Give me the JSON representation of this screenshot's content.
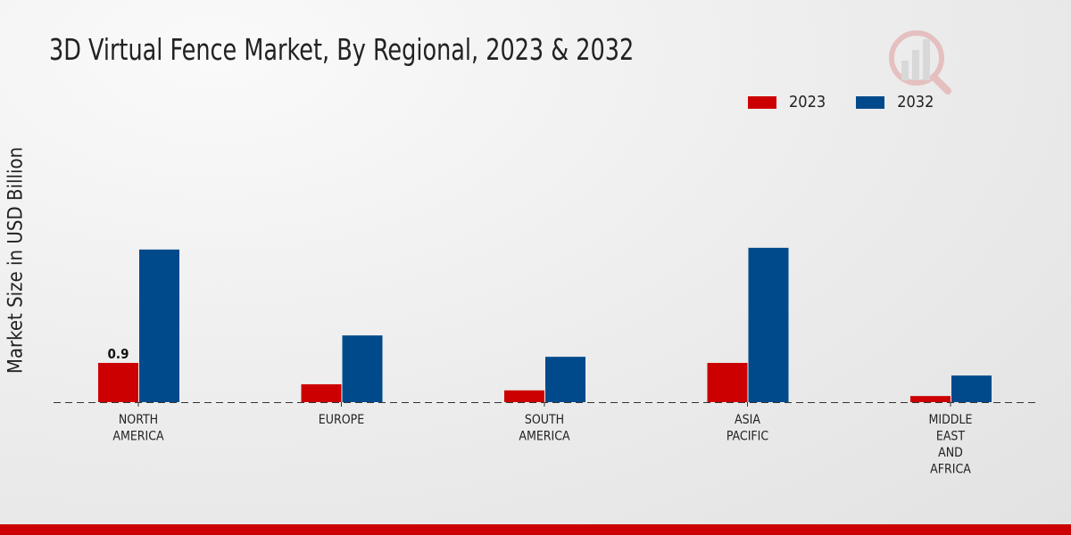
{
  "chart_data": {
    "type": "bar",
    "title": "3D Virtual Fence Market, By Regional, 2023 & 2032",
    "xlabel": "",
    "ylabel": "Market Size in USD Billion",
    "categories": [
      [
        "NORTH",
        "AMERICA"
      ],
      [
        "EUROPE"
      ],
      [
        "SOUTH",
        "AMERICA"
      ],
      [
        "ASIA",
        "PACIFIC"
      ],
      [
        "MIDDLE",
        "EAST",
        "AND",
        "AFRICA"
      ]
    ],
    "series": [
      {
        "name": "2023",
        "color": "#cc0000",
        "values": [
          0.9,
          0.41,
          0.27,
          0.9,
          0.14
        ]
      },
      {
        "name": "2032",
        "color": "#004a8c",
        "values": [
          3.5,
          1.53,
          1.04,
          3.54,
          0.61
        ]
      }
    ],
    "data_labels": [
      {
        "series": 0,
        "index": 0,
        "text": "0.9"
      }
    ],
    "ylim": [
      0,
      8.2
    ],
    "grid": false,
    "legend": "top-right"
  }
}
